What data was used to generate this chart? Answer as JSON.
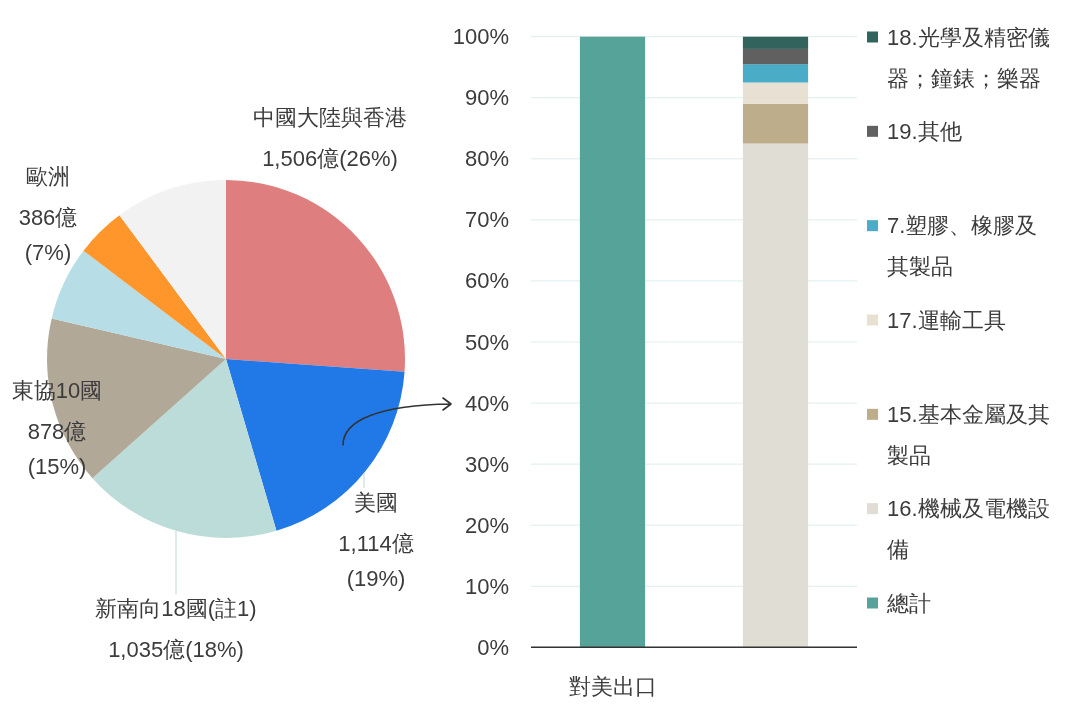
{
  "chart_data": [
    {
      "type": "pie",
      "categories": [
        "中國大陸與香港",
        "美國",
        "新南向18國(註1)",
        "東協10國",
        "歐洲",
        null,
        null
      ],
      "values": [
        1506,
        1114,
        1035,
        878,
        386,
        260,
        585
      ],
      "colors": [
        "#df7e7e",
        "#2179e7",
        "#bbdcd9",
        "#b2a898",
        "#b7dee7",
        "#ff962c",
        "#f2f2f2"
      ],
      "value_labels": [
        "1,506億(26%)",
        "1,114億(19%)",
        "1,035億(18%)",
        "878億(15%)",
        "386億(7%)",
        null,
        null
      ]
    },
    {
      "type": "bar",
      "stacked": true,
      "categories": [
        "對美出口",
        null
      ],
      "series": [
        {
          "name": "總計",
          "color": "#56a39a",
          "values": [
            100,
            null
          ]
        },
        {
          "name": "16.機械及電機設備",
          "color": "#e0ddd5",
          "values": [
            null,
            82.5
          ]
        },
        {
          "name": "15.基本金屬及其製品",
          "color": "#bead8b",
          "values": [
            null,
            6.5
          ]
        },
        {
          "name": "17.運輸工具",
          "color": "#e8e0d3",
          "values": [
            null,
            3.5
          ]
        },
        {
          "name": "7.塑膠、橡膠及其製品",
          "color": "#4aacc6",
          "values": [
            null,
            3
          ]
        },
        {
          "name": "19.其他",
          "color": "#606060",
          "values": [
            null,
            2.5
          ]
        },
        {
          "name": "18.光學及精密儀器；鐘錶；樂器",
          "color": "#33635d",
          "values": [
            null,
            2
          ]
        }
      ],
      "ylim": [
        0,
        100
      ],
      "yticks": [
        {
          "value": 0,
          "label": "0%"
        },
        {
          "value": 10,
          "label": "10%"
        },
        {
          "value": 20,
          "label": "20%"
        },
        {
          "value": 30,
          "label": "30%"
        },
        {
          "value": 40,
          "label": "40%"
        },
        {
          "value": 50,
          "label": "50%"
        },
        {
          "value": 60,
          "label": "60%"
        },
        {
          "value": 70,
          "label": "70%"
        },
        {
          "value": 80,
          "label": "80%"
        },
        {
          "value": 90,
          "label": "90%"
        },
        {
          "value": 100,
          "label": "100%"
        }
      ],
      "grid": "y",
      "legend": "right"
    }
  ]
}
